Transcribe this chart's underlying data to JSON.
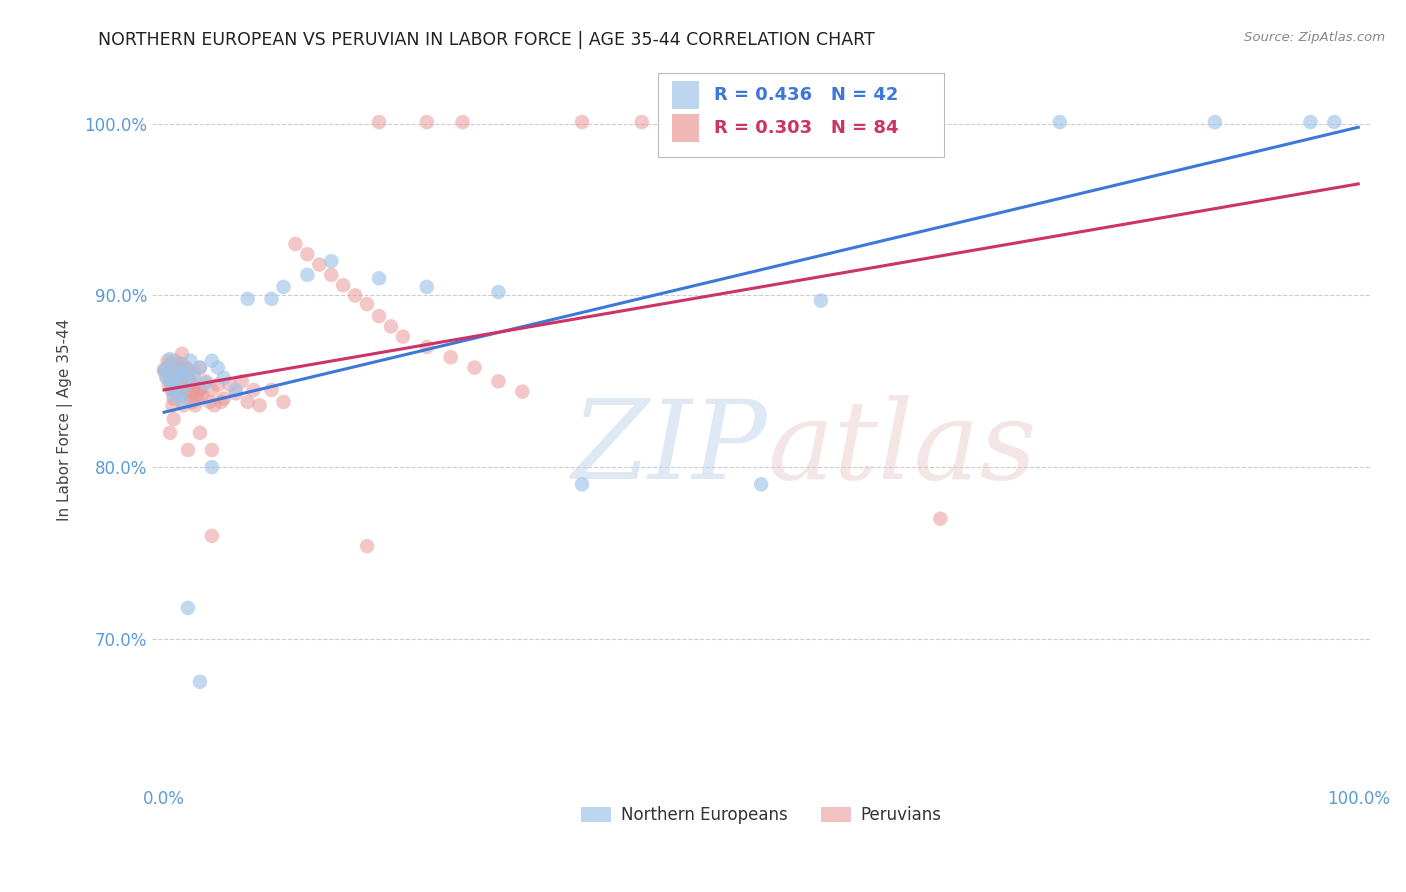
{
  "title": "NORTHERN EUROPEAN VS PERUVIAN IN LABOR FORCE | AGE 35-44 CORRELATION CHART",
  "source": "Source: ZipAtlas.com",
  "ylabel": "In Labor Force | Age 35-44",
  "xlim": [
    -0.01,
    1.01
  ],
  "ylim": [
    0.615,
    1.04
  ],
  "xticks": [
    0.0,
    0.1,
    0.2,
    0.3,
    0.4,
    0.5,
    0.6,
    0.7,
    0.8,
    0.9,
    1.0
  ],
  "xticklabels": [
    "0.0%",
    "",
    "",
    "",
    "",
    "",
    "",
    "",
    "",
    "",
    "100.0%"
  ],
  "yticks": [
    0.7,
    0.8,
    0.9,
    1.0
  ],
  "yticklabels": [
    "70.0%",
    "80.0%",
    "90.0%",
    "100.0%"
  ],
  "blue_color": "#9fc5e8",
  "pink_color": "#ea9999",
  "blue_line_color": "#3c78d8",
  "pink_line_color": "#cc3366",
  "legend_text_color": "#3c78d8",
  "legend_n_color": "#333333",
  "blue_trend_x": [
    0.0,
    1.0
  ],
  "blue_trend_y": [
    0.832,
    0.998
  ],
  "pink_trend_x": [
    0.0,
    1.0
  ],
  "pink_trend_y": [
    0.845,
    0.965
  ],
  "blue_x": [
    0.0,
    0.002,
    0.003,
    0.005,
    0.006,
    0.007,
    0.008,
    0.009,
    0.01,
    0.012,
    0.013,
    0.014,
    0.015,
    0.016,
    0.018,
    0.02,
    0.022,
    0.025,
    0.03,
    0.035,
    0.04,
    0.045,
    0.05,
    0.06,
    0.07,
    0.09,
    0.1,
    0.12,
    0.14,
    0.18,
    0.22,
    0.28,
    0.35,
    0.5,
    0.55,
    0.75,
    0.88,
    0.96,
    0.98,
    0.02,
    0.03,
    0.04
  ],
  "blue_y": [
    0.856,
    0.852,
    0.857,
    0.863,
    0.85,
    0.845,
    0.842,
    0.853,
    0.848,
    0.86,
    0.855,
    0.843,
    0.838,
    0.855,
    0.848,
    0.855,
    0.862,
    0.852,
    0.858,
    0.849,
    0.862,
    0.858,
    0.852,
    0.845,
    0.898,
    0.898,
    0.905,
    0.912,
    0.92,
    0.91,
    0.905,
    0.902,
    0.79,
    0.79,
    0.897,
    1.001,
    1.001,
    1.001,
    1.001,
    0.718,
    0.675,
    0.8
  ],
  "pink_x": [
    0.0,
    0.001,
    0.002,
    0.003,
    0.004,
    0.005,
    0.005,
    0.006,
    0.007,
    0.008,
    0.009,
    0.01,
    0.01,
    0.011,
    0.012,
    0.013,
    0.014,
    0.015,
    0.015,
    0.016,
    0.017,
    0.018,
    0.019,
    0.02,
    0.02,
    0.022,
    0.023,
    0.025,
    0.025,
    0.027,
    0.028,
    0.03,
    0.03,
    0.032,
    0.035,
    0.038,
    0.04,
    0.042,
    0.045,
    0.048,
    0.05,
    0.055,
    0.06,
    0.065,
    0.07,
    0.075,
    0.08,
    0.09,
    0.1,
    0.11,
    0.12,
    0.13,
    0.14,
    0.15,
    0.16,
    0.17,
    0.18,
    0.19,
    0.2,
    0.22,
    0.24,
    0.26,
    0.28,
    0.3,
    0.35,
    0.4,
    0.25,
    0.22,
    0.18,
    0.17,
    0.65,
    0.02,
    0.03,
    0.04,
    0.005,
    0.007,
    0.008,
    0.012,
    0.015,
    0.018,
    0.022,
    0.026,
    0.03,
    0.04
  ],
  "pink_y": [
    0.857,
    0.856,
    0.853,
    0.862,
    0.848,
    0.85,
    0.86,
    0.845,
    0.853,
    0.84,
    0.862,
    0.855,
    0.845,
    0.843,
    0.852,
    0.858,
    0.842,
    0.855,
    0.86,
    0.836,
    0.848,
    0.843,
    0.852,
    0.857,
    0.845,
    0.85,
    0.838,
    0.848,
    0.855,
    0.84,
    0.843,
    0.858,
    0.845,
    0.842,
    0.85,
    0.838,
    0.845,
    0.836,
    0.848,
    0.838,
    0.84,
    0.848,
    0.843,
    0.85,
    0.838,
    0.845,
    0.836,
    0.845,
    0.838,
    0.93,
    0.924,
    0.918,
    0.912,
    0.906,
    0.9,
    0.895,
    0.888,
    0.882,
    0.876,
    0.87,
    0.864,
    0.858,
    0.85,
    0.844,
    1.001,
    1.001,
    1.001,
    1.001,
    1.001,
    0.754,
    0.77,
    0.81,
    0.82,
    0.76,
    0.82,
    0.836,
    0.828,
    0.86,
    0.866,
    0.858,
    0.842,
    0.836,
    0.845,
    0.81
  ]
}
